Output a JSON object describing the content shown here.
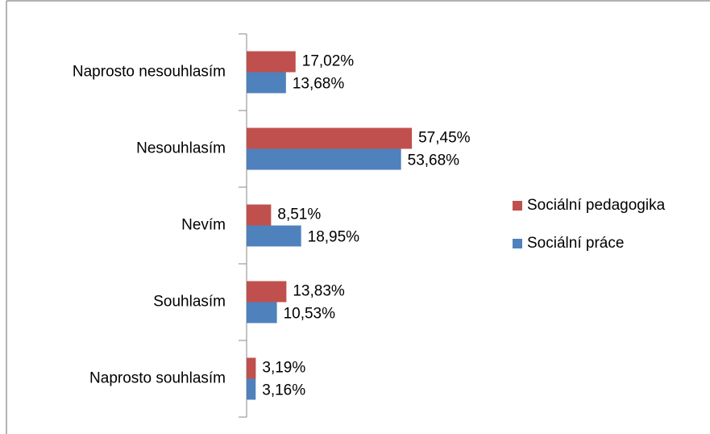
{
  "chart_data": {
    "type": "bar",
    "orientation": "horizontal",
    "categories": [
      "Naprosto nesouhlasím",
      "Nesouhlasím",
      "Nevím",
      "Souhlasím",
      "Naprosto souhlasím"
    ],
    "series": [
      {
        "name": "Sociální pedagogika",
        "color": "#c0504d",
        "values": [
          17.02,
          57.45,
          8.51,
          13.83,
          3.19
        ],
        "value_labels": [
          "17,02%",
          "57,45%",
          "8,51%",
          "13,83%",
          "3,19%"
        ]
      },
      {
        "name": "Sociální práce",
        "color": "#4f81bd",
        "values": [
          13.68,
          53.68,
          18.95,
          10.53,
          3.16
        ],
        "value_labels": [
          "13,68%",
          "53,68%",
          "18,95%",
          "10,53%",
          "3,16%"
        ]
      }
    ],
    "legend": "right"
  }
}
